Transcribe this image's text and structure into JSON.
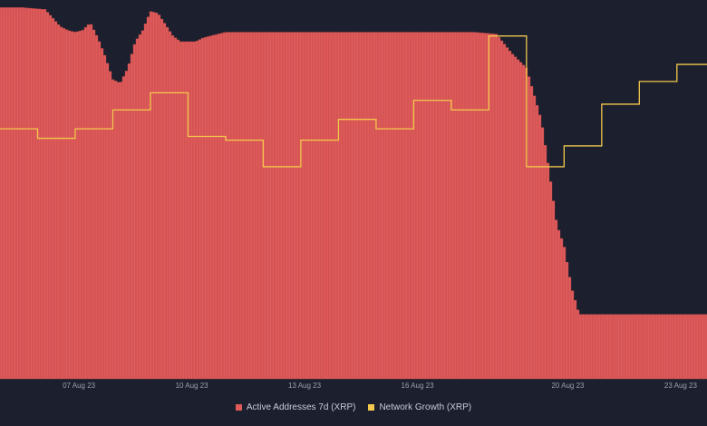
{
  "chart_data": {
    "type": "bar",
    "title": "",
    "xlabel": "",
    "ylabel": "",
    "x_ticks": [
      "07 Aug 23",
      "10 Aug 23",
      "13 Aug 23",
      "16 Aug 23",
      "20 Aug 23",
      "23 Aug 23"
    ],
    "x_tick_positions": [
      0.5,
      3.5,
      6.5,
      9.5,
      13.5,
      16.5
    ],
    "x_range": [
      -1.6,
      17.2
    ],
    "y_range": [
      0,
      100
    ],
    "grid": false,
    "legend_placement": "bottom-center",
    "series": [
      {
        "name": "Active Addresses 7d (XRP)",
        "type": "bar",
        "color": "#e05a5a",
        "x": [
          -1.6,
          -1.0,
          -0.4,
          0.0,
          0.2,
          0.4,
          0.6,
          0.8,
          1.0,
          1.2,
          1.4,
          1.6,
          1.8,
          2.0,
          2.2,
          2.4,
          2.6,
          3.0,
          3.2,
          3.6,
          3.8,
          4.0,
          4.2,
          4.4,
          5.0,
          6.0,
          7.0,
          8.0,
          9.0,
          10.0,
          10.4,
          10.6,
          11.0,
          11.6,
          12.0,
          12.4,
          12.6,
          12.8,
          13.0,
          13.2,
          13.4,
          13.6,
          13.8,
          14.0,
          14.2,
          14.4,
          14.6,
          15.0,
          16.0,
          17.2
        ],
        "values": [
          98,
          98,
          97.5,
          93,
          92,
          91.5,
          92,
          94,
          90,
          85,
          79,
          78,
          82,
          89,
          92,
          97,
          96.5,
          90.5,
          89,
          89,
          90,
          90.5,
          91,
          91.5,
          91.5,
          91.5,
          91.5,
          91.5,
          91.5,
          91.5,
          91.5,
          91.5,
          91.5,
          91,
          86,
          82,
          75,
          68,
          55,
          41,
          35,
          24,
          17,
          17,
          17,
          17,
          17,
          17,
          17,
          17
        ]
      },
      {
        "name": "Network Growth (XRP)",
        "type": "line",
        "color": "#f2c94c",
        "x": [
          -1.6,
          -0.6,
          -0.6,
          0.4,
          0.4,
          1.4,
          1.4,
          2.4,
          2.4,
          3.4,
          3.4,
          4.4,
          4.4,
          5.4,
          5.4,
          6.4,
          6.4,
          7.4,
          7.4,
          8.4,
          8.4,
          9.4,
          9.4,
          10.4,
          10.4,
          11.4,
          11.4,
          12.4,
          12.4,
          13.4,
          13.4,
          14.4,
          14.4,
          15.4,
          15.4,
          16.4,
          16.4,
          17.2
        ],
        "values": [
          66,
          66,
          63.5,
          63.5,
          66,
          66,
          71,
          71,
          75.5,
          75.5,
          64,
          64,
          63,
          63,
          56,
          56,
          63,
          63,
          68.5,
          68.5,
          66,
          66,
          73.5,
          73.5,
          71,
          71,
          90.5,
          90.5,
          56,
          56,
          61.5,
          61.5,
          72.5,
          72.5,
          78.5,
          78.5,
          83,
          83
        ]
      }
    ]
  },
  "legend": {
    "active_addresses": "Active Addresses 7d (XRP)",
    "network_growth": "Network Growth (XRP)"
  },
  "colors": {
    "background": "#1b1f2e",
    "bar": "#e05a5a",
    "bar_line": "#b84848",
    "line": "#f2c94c",
    "tick": "#9aa0b0"
  }
}
